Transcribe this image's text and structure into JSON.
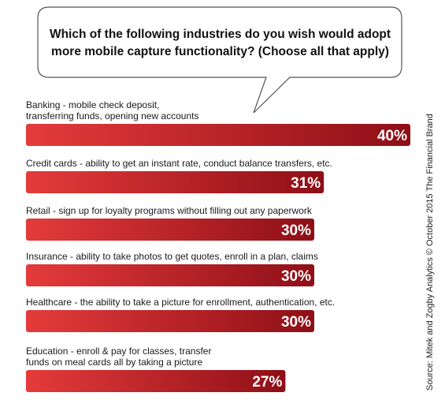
{
  "question": {
    "line1": "Which of the following industries do you wish would adopt",
    "line2": "more mobile capture functionality? (Choose all that apply)"
  },
  "source_note": "Source: Mitek and Zogby Analytics © October 2015 The Financial Brand",
  "colors": {
    "bar_dark": "#8e0f17",
    "bar_light": "#e53b3b",
    "bubble_stroke": "#555555"
  },
  "chart_data": {
    "type": "bar",
    "orientation": "horizontal",
    "unit": "%",
    "xlim": [
      0,
      40
    ],
    "categories": [
      [
        "Banking - mobile check deposit,",
        "transferring funds, opening new accounts"
      ],
      [
        "Credit cards - ability to get an instant rate, conduct balance transfers, etc."
      ],
      [
        "Retail - sign up for loyalty programs without filling out any paperwork"
      ],
      [
        "Insurance - ability to take photos to get quotes, enroll in a plan, claims"
      ],
      [
        "Healthcare - the ability to take a picture for enrollment, authentication, etc."
      ],
      [
        "Education - enroll & pay for classes, transfer",
        "funds on meal cards all by taking a picture"
      ]
    ],
    "values": [
      40,
      31,
      30,
      30,
      30,
      27
    ],
    "value_labels": [
      "40%",
      "31%",
      "30%",
      "30%",
      "30%",
      "27%"
    ]
  }
}
